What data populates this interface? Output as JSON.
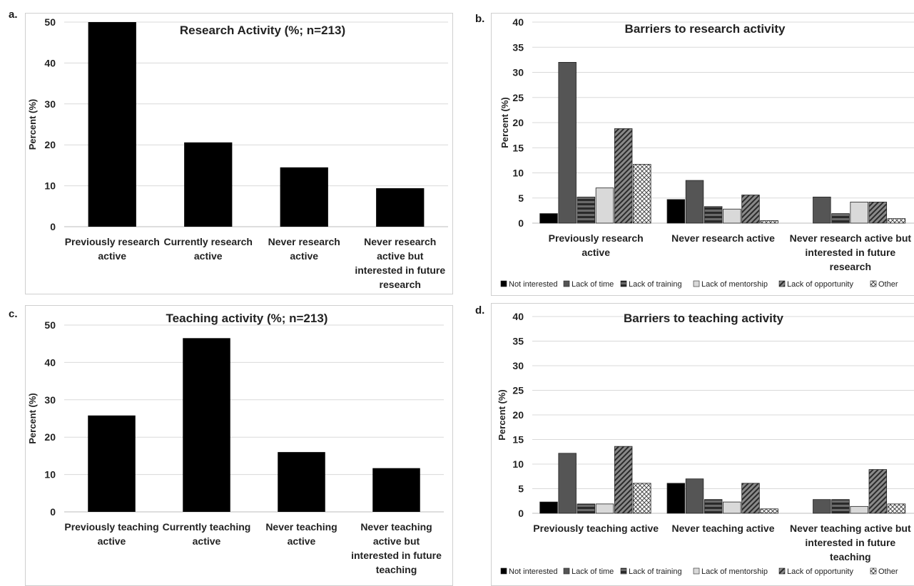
{
  "panels": [
    {
      "letter": "a.",
      "chart_data": {
        "type": "bar",
        "title": "Research Activity (%; n=213)",
        "ylabel": "Percent (%)",
        "xlabel": "",
        "ylim": [
          0,
          50
        ],
        "yticks": [
          0,
          10,
          20,
          30,
          40,
          50
        ],
        "grid": true,
        "categories": [
          [
            "Previously research",
            "active"
          ],
          [
            "Currently research",
            "active"
          ],
          [
            "Never research",
            "active"
          ],
          [
            "Never research",
            "active but",
            "interested in future",
            "research"
          ]
        ],
        "values": [
          50,
          20.6,
          14.5,
          9.4
        ]
      }
    },
    {
      "letter": "b.",
      "chart_data": {
        "type": "bar",
        "title": "Barriers to research activity",
        "ylabel": "Percent (%)",
        "xlabel": "",
        "ylim": [
          0,
          40
        ],
        "yticks": [
          0,
          5,
          10,
          15,
          20,
          25,
          30,
          35,
          40
        ],
        "grid": true,
        "legend": "bottom",
        "categories": [
          [
            "Previously research",
            "active"
          ],
          [
            "Never research active"
          ],
          [
            "Never research active but",
            "interested in future",
            "research"
          ]
        ],
        "series": [
          {
            "name": "Not interested",
            "values": [
              1.9,
              4.7,
              0
            ]
          },
          {
            "name": "Lack of time",
            "values": [
              32,
              8.5,
              5.2
            ]
          },
          {
            "name": "Lack of training",
            "values": [
              5.2,
              3.3,
              1.9
            ]
          },
          {
            "name": "Lack of mentorship",
            "values": [
              7.0,
              2.8,
              4.2
            ]
          },
          {
            "name": "Lack of opportunity",
            "values": [
              18.8,
              5.6,
              4.2
            ]
          },
          {
            "name": "Other",
            "values": [
              11.7,
              0.5,
              0.9
            ]
          }
        ]
      }
    },
    {
      "letter": "c.",
      "chart_data": {
        "type": "bar",
        "title": "Teaching activity (%; n=213)",
        "ylabel": "Percent (%)",
        "xlabel": "",
        "ylim": [
          0,
          50
        ],
        "yticks": [
          0,
          10,
          20,
          30,
          40,
          50
        ],
        "grid": true,
        "categories": [
          [
            "Previously teaching",
            "active"
          ],
          [
            "Currently teaching",
            "active"
          ],
          [
            "Never teaching",
            "active"
          ],
          [
            "Never teaching",
            "active but",
            "interested in future",
            "teaching"
          ]
        ],
        "values": [
          25.8,
          46.5,
          16,
          11.7
        ]
      }
    },
    {
      "letter": "d.",
      "chart_data": {
        "type": "bar",
        "title": "Barriers to teaching activity",
        "ylabel": "Percent (%)",
        "xlabel": "",
        "ylim": [
          0,
          40
        ],
        "yticks": [
          0,
          5,
          10,
          15,
          20,
          25,
          30,
          35,
          40
        ],
        "grid": true,
        "legend": "bottom",
        "categories": [
          [
            "Previously teaching active"
          ],
          [
            "Never teaching active"
          ],
          [
            "Never teaching active but",
            "interested in future",
            "teaching"
          ]
        ],
        "series": [
          {
            "name": "Not interested",
            "values": [
              2.3,
              6.1,
              0
            ]
          },
          {
            "name": "Lack of time",
            "values": [
              12.2,
              7.0,
              2.8
            ]
          },
          {
            "name": "Lack of training",
            "values": [
              1.9,
              2.8,
              2.8
            ]
          },
          {
            "name": "Lack of mentorship",
            "values": [
              1.9,
              2.3,
              1.4
            ]
          },
          {
            "name": "Lack of opportunity",
            "values": [
              13.6,
              6.1,
              8.9
            ]
          },
          {
            "name": "Other",
            "values": [
              6.1,
              0.9,
              1.9
            ]
          }
        ]
      }
    }
  ]
}
